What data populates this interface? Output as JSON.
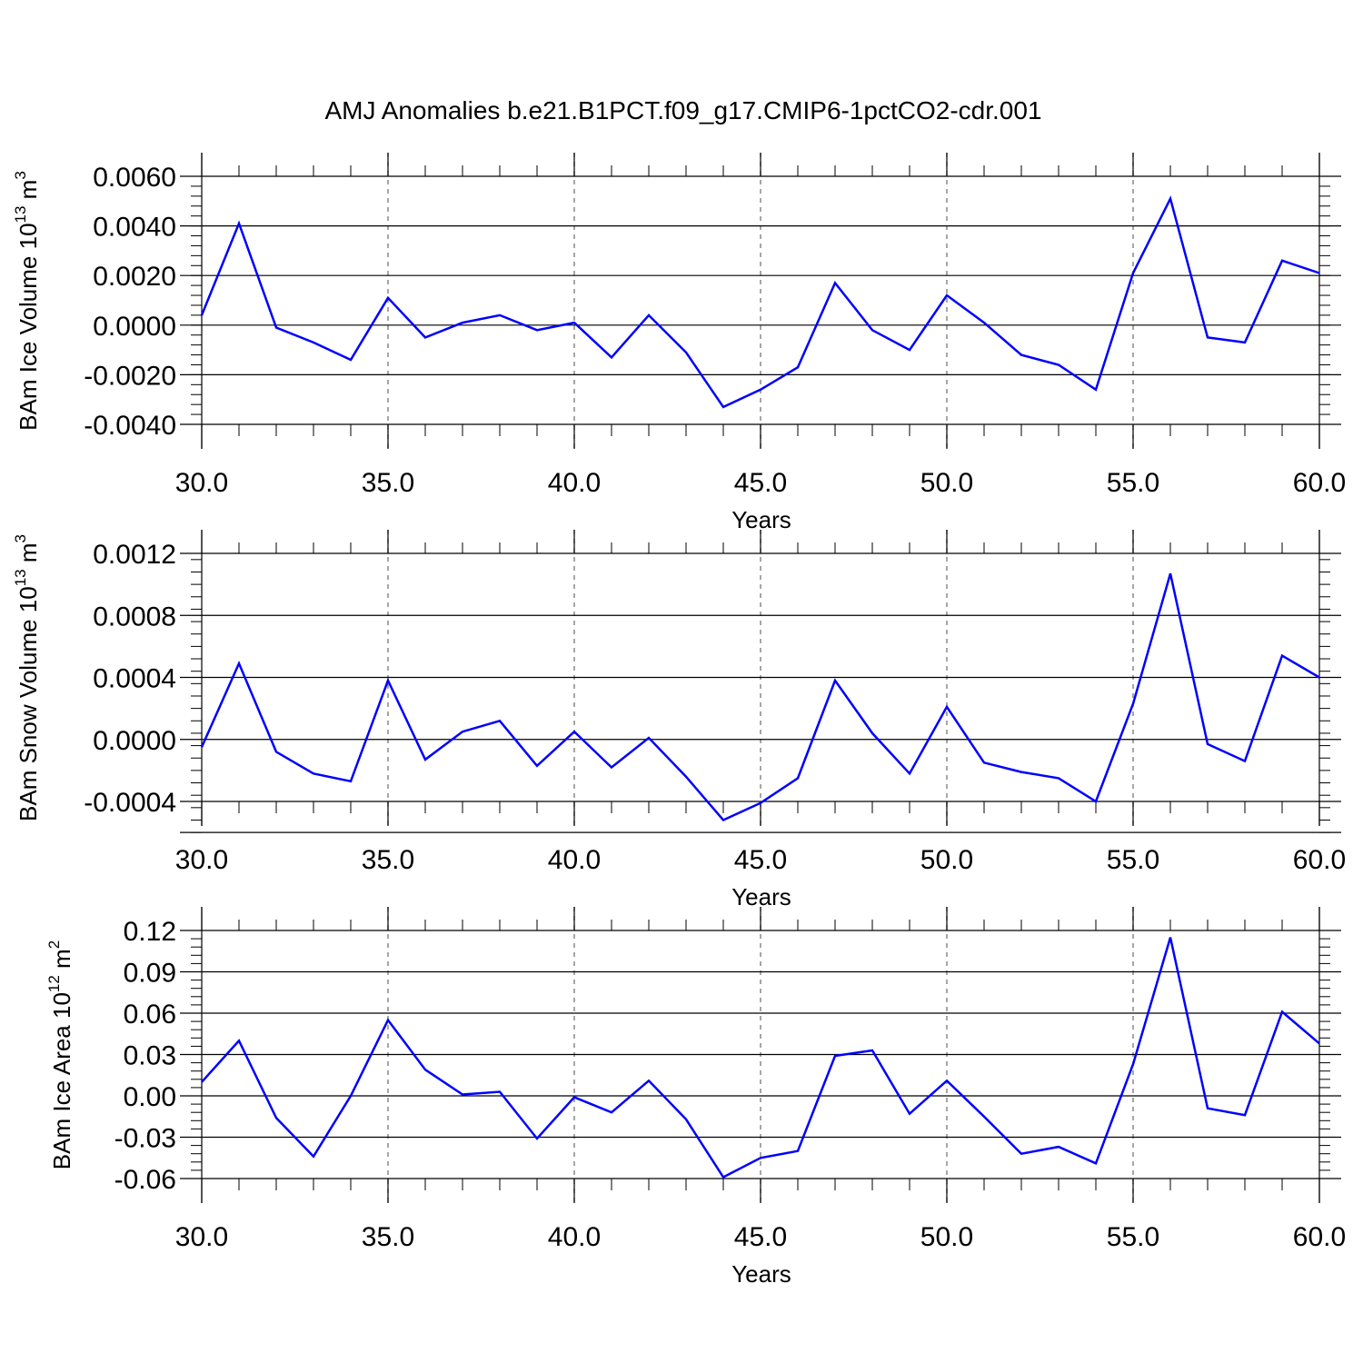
{
  "title": "AMJ Anomalies b.e21.B1PCT.f09_g17.CMIP6-1pctCO2-cdr.001",
  "chart_data": [
    {
      "type": "line",
      "name": "ice-volume",
      "ylabel": {
        "text": "BAm Ice Volume 10",
        "sup": "13",
        "unit": " m",
        "unit_sup": "3"
      },
      "xlabel": "Years",
      "xlim": [
        30,
        60
      ],
      "ylim": [
        -0.004,
        0.006
      ],
      "x_ticks": [
        30,
        35,
        40,
        45,
        50,
        55,
        60
      ],
      "x_tick_labels": [
        "30.0",
        "35.0",
        "40.0",
        "45.0",
        "50.0",
        "55.0",
        "60.0"
      ],
      "y_ticks": [
        -0.004,
        -0.002,
        0.0,
        0.002,
        0.004,
        0.006
      ],
      "y_tick_labels": [
        "-0.0040",
        "-0.0020",
        "0.0000",
        "0.0020",
        "0.0040",
        "0.0060"
      ],
      "series": [
        {
          "color": "#0000ff",
          "x": [
            30,
            31,
            32,
            33,
            34,
            35,
            36,
            37,
            38,
            39,
            40,
            41,
            42,
            43,
            44,
            45,
            46,
            47,
            48,
            49,
            50,
            51,
            52,
            53,
            54,
            55,
            56,
            57,
            58,
            59,
            60
          ],
          "values": [
            0.0004,
            0.0041,
            -0.0001,
            -0.0007,
            -0.0014,
            0.0011,
            -0.0005,
            0.0001,
            0.0004,
            -0.0002,
            0.0001,
            -0.0013,
            0.0004,
            -0.0011,
            -0.0033,
            -0.0026,
            -0.0017,
            0.0017,
            -0.0002,
            -0.001,
            0.0012,
            0.0001,
            -0.0012,
            -0.0016,
            -0.0026,
            0.0021,
            0.0051,
            -0.0005,
            -0.0007,
            0.0026,
            0.0021
          ]
        }
      ],
      "grid": "vertical-dashed-at-major-x"
    },
    {
      "type": "line",
      "name": "snow-volume",
      "ylabel": {
        "text": "BAm Snow Volume 10",
        "sup": "13",
        "unit": " m",
        "unit_sup": "3"
      },
      "xlabel": "Years",
      "xlim": [
        30,
        60
      ],
      "ylim": [
        -0.0006,
        0.0012
      ],
      "x_ticks": [
        30,
        35,
        40,
        45,
        50,
        55,
        60
      ],
      "x_tick_labels": [
        "30.0",
        "35.0",
        "40.0",
        "45.0",
        "50.0",
        "55.0",
        "60.0"
      ],
      "y_ticks": [
        -0.0004,
        0.0,
        0.0004,
        0.0008,
        0.0012
      ],
      "y_tick_labels": [
        "-0.0004",
        "0.0000",
        "0.0004",
        "0.0008",
        "0.0012"
      ],
      "series": [
        {
          "color": "#0000ff",
          "x": [
            30,
            31,
            32,
            33,
            34,
            35,
            36,
            37,
            38,
            39,
            40,
            41,
            42,
            43,
            44,
            45,
            46,
            47,
            48,
            49,
            50,
            51,
            52,
            53,
            54,
            55,
            56,
            57,
            58,
            59,
            60
          ],
          "values": [
            -5e-05,
            0.00049,
            -8e-05,
            -0.00022,
            -0.00027,
            0.00038,
            -0.00013,
            5e-05,
            0.00012,
            -0.00017,
            5e-05,
            -0.00018,
            1e-05,
            -0.00024,
            -0.00052,
            -0.00041,
            -0.00025,
            0.00038,
            4e-05,
            -0.00022,
            0.00021,
            -0.00015,
            -0.00021,
            -0.00025,
            -0.0004,
            0.00023,
            0.00107,
            -3e-05,
            -0.00014,
            0.00054,
            0.0004
          ]
        }
      ],
      "grid": "vertical-dashed-at-major-x"
    },
    {
      "type": "line",
      "name": "ice-area",
      "ylabel": {
        "text": "BAm Ice Area 10",
        "sup": "12",
        "unit": " m",
        "unit_sup": "2"
      },
      "xlabel": "Years",
      "xlim": [
        30,
        60
      ],
      "ylim": [
        -0.06,
        0.12
      ],
      "x_ticks": [
        30,
        35,
        40,
        45,
        50,
        55,
        60
      ],
      "x_tick_labels": [
        "30.0",
        "35.0",
        "40.0",
        "45.0",
        "50.0",
        "55.0",
        "60.0"
      ],
      "y_ticks": [
        -0.06,
        -0.03,
        0.0,
        0.03,
        0.06,
        0.09,
        0.12
      ],
      "y_tick_labels": [
        "-0.06",
        "-0.03",
        "0.00",
        "0.03",
        "0.06",
        "0.09",
        "0.12"
      ],
      "series": [
        {
          "color": "#0000ff",
          "x": [
            30,
            31,
            32,
            33,
            34,
            35,
            36,
            37,
            38,
            39,
            40,
            41,
            42,
            43,
            44,
            45,
            46,
            47,
            48,
            49,
            50,
            51,
            52,
            53,
            54,
            55,
            56,
            57,
            58,
            59,
            60
          ],
          "values": [
            0.01,
            0.04,
            -0.016,
            -0.044,
            0.0,
            0.055,
            0.019,
            0.001,
            0.003,
            -0.031,
            -0.001,
            -0.012,
            0.011,
            -0.017,
            -0.059,
            -0.045,
            -0.04,
            0.029,
            0.033,
            -0.013,
            0.011,
            -0.015,
            -0.042,
            -0.037,
            -0.049,
            0.023,
            0.115,
            -0.009,
            -0.014,
            0.061,
            0.038
          ]
        }
      ],
      "grid": "vertical-dashed-at-major-x"
    }
  ]
}
